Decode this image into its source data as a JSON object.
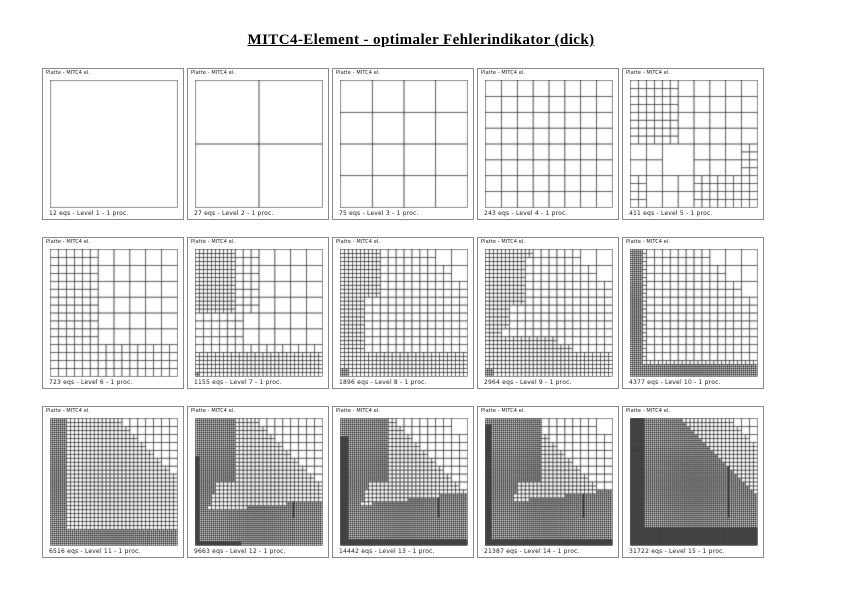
{
  "page": {
    "title": "MITC4-Element - optimaler Fehlerindikator (dick)"
  },
  "colors": {
    "background": "#ffffff",
    "panel_border": "#8a8a8a",
    "mesh_line": "#3c3c3c",
    "text": "#1a1a1a"
  },
  "chart_data": {
    "type": "heatmap",
    "title": "MITC4-Element - optimaler Fehlerindikator (dick)",
    "layout": "3 rows x 5 columns of adaptive finite-element meshes, refinement level increases left-to-right, top-to-bottom",
    "panels_note": "each mesh is a quadtree over the unit square; rules give refinement level L (cell size 1/2^L) where all half-plane conditions a*x+b*y<=c hold (x right, y down, normalized 0..1)"
  },
  "panels": [
    {
      "header": "Platte - MITC4 el.",
      "caption": "12 eqs - Level 1 - 1 proc.",
      "mesh": {
        "base": 0,
        "rules": []
      }
    },
    {
      "header": "Platte - MITC4 el.",
      "caption": "27 eqs - Level 2 - 1 proc.",
      "mesh": {
        "base": 1,
        "rules": []
      }
    },
    {
      "header": "Platte - MITC4 el.",
      "caption": "75 eqs - Level 3 - 1 proc.",
      "mesh": {
        "base": 2,
        "rules": []
      }
    },
    {
      "header": "Platte - MITC4 el.",
      "caption": "243 eqs - Level 4 - 1 proc.",
      "mesh": {
        "base": 3,
        "rules": []
      }
    },
    {
      "header": "Platte - MITC4 el.",
      "caption": "411 eqs - Level 5 - 1 proc.",
      "mesh": {
        "base": 2,
        "rules": [
          {
            "L": 3,
            "c": [
              [
                0,
                1,
                0.5
              ]
            ]
          },
          {
            "L": 3,
            "c": [
              [
                1,
                0,
                0.25
              ]
            ]
          },
          {
            "L": 3,
            "c": [
              [
                -1,
                0,
                -0.55
              ]
            ]
          },
          {
            "L": 3,
            "c": [
              [
                0,
                -1,
                -0.75
              ]
            ]
          },
          {
            "L": 4,
            "c": [
              [
                1,
                0,
                0.28
              ],
              [
                0,
                1,
                0.5
              ]
            ]
          },
          {
            "L": 4,
            "c": [
              [
                -1,
                0,
                -0.5
              ],
              [
                0,
                -1,
                -0.78
              ]
            ]
          },
          {
            "L": 4,
            "c": [
              [
                1,
                0,
                0.06
              ],
              [
                0,
                -1,
                -0.78
              ]
            ]
          },
          {
            "L": 4,
            "c": [
              [
                -1,
                0,
                -0.94
              ],
              [
                0,
                -1,
                -0.55
              ]
            ]
          }
        ]
      }
    },
    {
      "header": "Platte - MITC4 el.",
      "caption": "723 eqs - Level 6 - 1 proc.",
      "mesh": {
        "base": 3,
        "rules": [
          {
            "L": 4,
            "c": [
              [
                1,
                0.12,
                0.34
              ]
            ]
          },
          {
            "L": 4,
            "c": [
              [
                0,
                -1,
                -0.78
              ]
            ]
          }
        ]
      }
    },
    {
      "header": "Platte - MITC4 el.",
      "caption": "1155 eqs - Level 7 - 1 proc.",
      "mesh": {
        "base": 3,
        "rules": [
          {
            "L": 4,
            "c": [
              [
                1,
                0.15,
                0.45
              ]
            ]
          },
          {
            "L": 4,
            "c": [
              [
                0,
                -1,
                -0.75
              ]
            ]
          },
          {
            "L": 5,
            "c": [
              [
                1,
                0,
                0.28
              ],
              [
                0,
                1,
                0.5
              ]
            ]
          },
          {
            "L": 5,
            "c": [
              [
                0,
                -1,
                -0.86
              ]
            ]
          },
          {
            "L": 6,
            "c": [
              [
                1,
                0,
                0.03
              ],
              [
                0,
                -1,
                -0.97
              ]
            ]
          }
        ]
      }
    },
    {
      "header": "Platte - MITC4 el.",
      "caption": "1896 eqs - Level 8 - 1 proc.",
      "mesh": {
        "base": 3,
        "rules": [
          {
            "L": 4,
            "c": [
              [
                1,
                -1,
                0.55
              ]
            ]
          },
          {
            "L": 5,
            "c": [
              [
                1,
                0,
                0.3
              ],
              [
                0,
                1,
                0.35
              ]
            ]
          },
          {
            "L": 5,
            "c": [
              [
                1,
                0,
                0.15
              ]
            ]
          },
          {
            "L": 5,
            "c": [
              [
                0,
                -1,
                -0.85
              ]
            ]
          },
          {
            "L": 6,
            "c": [
              [
                1,
                0,
                0.04
              ],
              [
                0,
                -1,
                -0.96
              ]
            ]
          }
        ]
      }
    },
    {
      "header": "Platte - MITC4 el.",
      "caption": "2964 eqs - Level 9 - 1 proc.",
      "mesh": {
        "base": 3,
        "rules": [
          {
            "L": 4,
            "c": [
              [
                1,
                -1,
                0.55
              ]
            ]
          },
          {
            "L": 5,
            "c": [
              [
                1,
                0,
                0.3
              ],
              [
                0,
                1,
                0.42
              ]
            ]
          },
          {
            "L": 5,
            "c": [
              [
                1,
                0.35,
                0.33
              ]
            ]
          },
          {
            "L": 5,
            "c": [
              [
                0,
                -1,
                -0.72
              ],
              [
                1,
                0,
                0.55
              ]
            ]
          },
          {
            "L": 5,
            "c": [
              [
                0.2,
                -1,
                -0.68
              ]
            ]
          },
          {
            "L": 6,
            "c": [
              [
                1,
                0,
                0.04
              ],
              [
                0,
                -1,
                -0.94
              ]
            ]
          }
        ]
      }
    },
    {
      "header": "Platte - MITC4 el.",
      "caption": "4377 eqs - Level 10 - 1 proc.",
      "mesh": {
        "base": 3,
        "rules": [
          {
            "L": 4,
            "c": [
              [
                1,
                -1,
                0.5
              ]
            ]
          },
          {
            "L": 5,
            "c": [
              [
                1,
                0,
                0.12
              ]
            ]
          },
          {
            "L": 5,
            "c": [
              [
                0,
                -1,
                -0.88
              ]
            ]
          },
          {
            "L": 6,
            "c": [
              [
                1,
                0,
                0.08
              ]
            ]
          },
          {
            "L": 6,
            "c": [
              [
                0,
                -1,
                -0.93
              ]
            ]
          }
        ]
      }
    },
    {
      "header": "Platte - MITC4 el.",
      "caption": "6516 eqs - Level 11 - 1 proc.",
      "mesh": {
        "base": 3,
        "rules": [
          {
            "L": 4,
            "c": [
              [
                1,
                -1,
                0.85
              ]
            ]
          },
          {
            "L": 5,
            "c": [
              [
                1,
                -1,
                0.5
              ]
            ]
          },
          {
            "L": 6,
            "c": [
              [
                1,
                0,
                0.12
              ]
            ]
          },
          {
            "L": 6,
            "c": [
              [
                0,
                -1,
                -0.9
              ]
            ]
          }
        ]
      }
    },
    {
      "header": "Platte - MITC4 el.",
      "caption": "9663 eqs - Level 12 - 1 proc.",
      "mesh": {
        "base": 3,
        "rules": [
          {
            "L": 4,
            "c": [
              [
                1,
                -1,
                0.8
              ]
            ]
          },
          {
            "L": 5,
            "c": [
              [
                1,
                -1,
                0.4
              ]
            ]
          },
          {
            "L": 6,
            "c": [
              [
                1,
                0,
                0.3
              ],
              [
                0,
                1,
                0.5
              ]
            ]
          },
          {
            "L": 6,
            "c": [
              [
                1,
                0.3,
                0.3
              ]
            ]
          },
          {
            "L": 6,
            "c": [
              [
                -0.1,
                -1,
                -0.76
              ]
            ]
          },
          {
            "L": 7,
            "c": [
              [
                1,
                0,
                0.025
              ],
              [
                0,
                -1,
                -0.3
              ]
            ]
          },
          {
            "L": 7,
            "c": [
              [
                0,
                -1,
                -0.97
              ],
              [
                1,
                0,
                0.35
              ]
            ]
          }
        ]
      }
    },
    {
      "header": "Platte - MITC4 el.",
      "caption": "14442 eqs - Level 13 - 1 proc.",
      "mesh": {
        "base": 3,
        "rules": [
          {
            "L": 4,
            "c": [
              [
                1,
                -1,
                0.75
              ]
            ]
          },
          {
            "L": 5,
            "c": [
              [
                1,
                -1,
                0.35
              ]
            ]
          },
          {
            "L": 6,
            "c": [
              [
                1,
                0,
                0.35
              ],
              [
                0,
                1,
                0.5
              ]
            ]
          },
          {
            "L": 6,
            "c": [
              [
                1,
                0.3,
                0.35
              ]
            ]
          },
          {
            "L": 6,
            "c": [
              [
                0,
                -1,
                -0.7
              ],
              [
                1,
                0,
                0.6
              ]
            ]
          },
          {
            "L": 6,
            "c": [
              [
                -0.12,
                -1,
                -0.72
              ]
            ]
          },
          {
            "L": 7,
            "c": [
              [
                1,
                0,
                0.05
              ],
              [
                0,
                -1,
                -0.15
              ]
            ]
          },
          {
            "L": 7,
            "c": [
              [
                0,
                -1,
                -0.96
              ]
            ]
          }
        ]
      }
    },
    {
      "header": "Platte - MITC4 el.",
      "caption": "21387 eqs - Level 14 - 1 proc.",
      "mesh": {
        "base": 3,
        "rules": [
          {
            "L": 4,
            "c": [
              [
                1,
                -1,
                0.7
              ]
            ]
          },
          {
            "L": 5,
            "c": [
              [
                1,
                -1,
                0.28
              ]
            ]
          },
          {
            "L": 6,
            "c": [
              [
                1,
                0,
                0.42
              ],
              [
                0,
                1,
                0.5
              ]
            ]
          },
          {
            "L": 6,
            "c": [
              [
                1,
                0.35,
                0.42
              ]
            ]
          },
          {
            "L": 6,
            "c": [
              [
                0,
                -1,
                -0.8
              ]
            ]
          },
          {
            "L": 6,
            "c": [
              [
                -0.12,
                -1,
                -0.7
              ]
            ]
          },
          {
            "L": 7,
            "c": [
              [
                1,
                0,
                0.045
              ],
              [
                0,
                -1,
                -0.05
              ]
            ]
          },
          {
            "L": 7,
            "c": [
              [
                0,
                -1,
                -0.96
              ]
            ]
          }
        ]
      }
    },
    {
      "header": "Platte - MITC4 el.",
      "caption": "31722 eqs - Level 15 - 1 proc.",
      "mesh": {
        "base": 4,
        "rules": [
          {
            "L": 5,
            "c": [
              [
                1,
                -1,
                0.75
              ]
            ]
          },
          {
            "L": 6,
            "c": [
              [
                1,
                -1,
                0.35
              ]
            ]
          },
          {
            "L": 7,
            "c": [
              [
                1,
                0,
                0.1
              ]
            ]
          },
          {
            "L": 7,
            "c": [
              [
                0,
                -1,
                -0.87
              ]
            ]
          }
        ]
      }
    }
  ]
}
